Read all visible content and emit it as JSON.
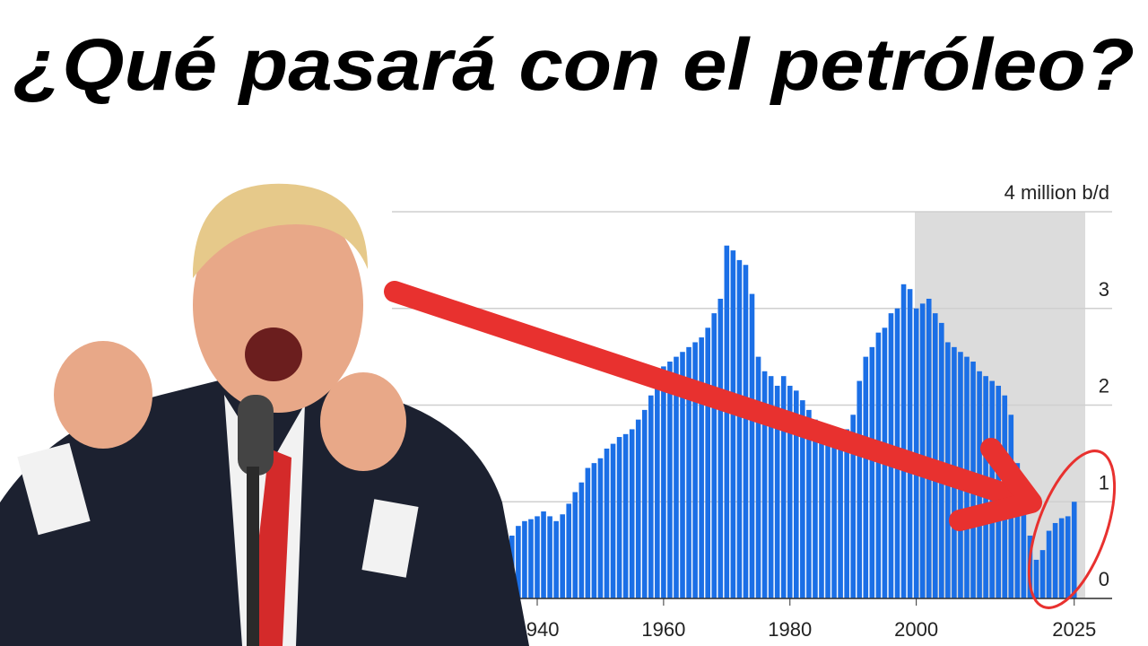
{
  "chart_data": {
    "type": "bar",
    "title": "¿Qué pasará con el petróleo?",
    "x": [
      1935,
      1936,
      1937,
      1938,
      1939,
      1940,
      1941,
      1942,
      1943,
      1944,
      1945,
      1946,
      1947,
      1948,
      1949,
      1950,
      1951,
      1952,
      1953,
      1954,
      1955,
      1956,
      1957,
      1958,
      1959,
      1960,
      1961,
      1962,
      1963,
      1964,
      1965,
      1966,
      1967,
      1968,
      1969,
      1970,
      1971,
      1972,
      1973,
      1974,
      1975,
      1976,
      1977,
      1978,
      1979,
      1980,
      1981,
      1982,
      1983,
      1984,
      1985,
      1986,
      1987,
      1988,
      1989,
      1990,
      1991,
      1992,
      1993,
      1994,
      1995,
      1996,
      1997,
      1998,
      1999,
      2000,
      2001,
      2002,
      2003,
      2004,
      2005,
      2006,
      2007,
      2008,
      2009,
      2010,
      2011,
      2012,
      2013,
      2014,
      2015,
      2016,
      2017,
      2018,
      2019,
      2020,
      2021,
      2022,
      2023,
      2024,
      2025
    ],
    "values": [
      0.62,
      0.65,
      0.75,
      0.8,
      0.82,
      0.85,
      0.9,
      0.85,
      0.8,
      0.87,
      0.98,
      1.1,
      1.2,
      1.35,
      1.4,
      1.45,
      1.55,
      1.6,
      1.67,
      1.7,
      1.75,
      1.85,
      1.95,
      2.1,
      2.2,
      2.4,
      2.45,
      2.5,
      2.55,
      2.6,
      2.65,
      2.7,
      2.8,
      2.95,
      3.1,
      3.65,
      3.6,
      3.5,
      3.45,
      3.15,
      2.5,
      2.35,
      2.3,
      2.2,
      2.3,
      2.2,
      2.15,
      2.05,
      1.95,
      1.85,
      1.75,
      1.65,
      1.6,
      1.65,
      1.75,
      1.9,
      2.25,
      2.5,
      2.6,
      2.75,
      2.8,
      2.95,
      3.0,
      3.25,
      3.2,
      3.0,
      3.05,
      3.1,
      2.95,
      2.85,
      2.65,
      2.6,
      2.55,
      2.5,
      2.45,
      2.35,
      2.3,
      2.25,
      2.2,
      2.1,
      1.9,
      1.4,
      1.1,
      0.65,
      0.4,
      0.5,
      0.7,
      0.78,
      0.83,
      0.85,
      1.0
    ],
    "color": "#1b6fe6",
    "xlim": [
      1917,
      2031
    ],
    "xticks": [
      1940,
      1960,
      1980,
      2000,
      2025
    ],
    "ylim": [
      0,
      4
    ],
    "yticks": [
      0,
      1,
      2,
      3,
      {
        "value": 4,
        "label": "4 million b/d"
      }
    ],
    "grid": true
  }
}
